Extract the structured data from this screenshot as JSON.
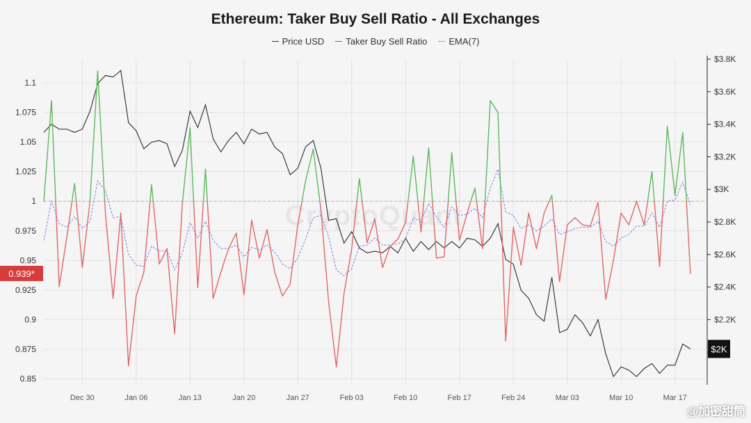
{
  "title": "Ethereum: Taker Buy Sell Ratio - All Exchanges",
  "legend": [
    {
      "label": "Price USD",
      "color": "#333333",
      "style": "solid"
    },
    {
      "label": "Taker Buy Sell Ratio",
      "color": "#5b5fd6",
      "style": "solid"
    },
    {
      "label": "EMA(7)",
      "color": "#8a8ae6",
      "style": "dashed"
    }
  ],
  "current_ratio_label": "0.939*",
  "current_price_label": "$2K",
  "watermark": "CryptoQuant",
  "corner_watermark": "@加密甜筒",
  "colors": {
    "above": "#5cb85c",
    "below": "#e06666",
    "price": "#2b2b2b",
    "ema": "#7b7be8",
    "ratio_badge": "#d63c3c",
    "price_badge": "#111111"
  },
  "chart_data": {
    "type": "line",
    "title": "Ethereum: Taker Buy Sell Ratio - All Exchanges",
    "x_start": "2024-12-25",
    "x_ticks": [
      {
        "label": "Dec 30",
        "day": 5
      },
      {
        "label": "Jan 06",
        "day": 12
      },
      {
        "label": "Jan 13",
        "day": 19
      },
      {
        "label": "Jan 20",
        "day": 26
      },
      {
        "label": "Jan 27",
        "day": 33
      },
      {
        "label": "Feb 03",
        "day": 40
      },
      {
        "label": "Feb 10",
        "day": 47
      },
      {
        "label": "Feb 17",
        "day": 54
      },
      {
        "label": "Feb 24",
        "day": 61
      },
      {
        "label": "Mar 03",
        "day": 68
      },
      {
        "label": "Mar 10",
        "day": 75
      },
      {
        "label": "Mar 17",
        "day": 82
      }
    ],
    "x_range": [
      0,
      86
    ],
    "left_axis": {
      "label": "Taker Buy Sell Ratio",
      "ylim": [
        0.845,
        1.12
      ],
      "ticks": [
        0.85,
        0.875,
        0.9,
        0.925,
        0.95,
        0.975,
        1,
        1.025,
        1.05,
        1.075,
        1.1
      ],
      "tick_labels": [
        "0.85",
        "0.875",
        "0.9",
        "0.925",
        "0.95",
        "0.975",
        "1",
        "1.025",
        "1.05",
        "1.075",
        "1.1"
      ],
      "reference": 1
    },
    "right_axis": {
      "label": "Price USD",
      "ylim": [
        1800,
        3800
      ],
      "ticks": [
        2000,
        2200,
        2400,
        2600,
        2800,
        3000,
        3200,
        3400,
        3600,
        3800
      ],
      "tick_labels": [
        "$2K",
        "$2.2K",
        "$2.4K",
        "$2.6K",
        "$2.8K",
        "$3K",
        "$3.2K",
        "$3.4K",
        "$3.6K",
        "$3.8K"
      ]
    },
    "series": [
      {
        "name": "Taker Buy Sell Ratio",
        "axis": "left",
        "values": [
          1.0,
          1.085,
          0.928,
          0.97,
          1.015,
          0.944,
          1.0,
          1.11,
          0.99,
          0.918,
          0.99,
          0.861,
          0.92,
          0.94,
          1.014,
          0.947,
          0.96,
          0.888,
          0.998,
          1.062,
          0.927,
          1.027,
          0.918,
          0.94,
          0.96,
          0.973,
          0.921,
          0.984,
          0.952,
          0.976,
          0.94,
          0.92,
          0.93,
          0.98,
          1.017,
          1.044,
          0.993,
          0.915,
          0.86,
          0.922,
          0.96,
          1.019,
          0.965,
          0.985,
          0.944,
          0.962,
          0.968,
          0.982,
          1.038,
          0.974,
          1.045,
          0.952,
          0.953,
          1.041,
          0.967,
          0.99,
          1.011,
          0.96,
          1.085,
          1.075,
          0.882,
          0.978,
          0.946,
          0.99,
          0.96,
          0.99,
          1.005,
          0.932,
          0.98,
          0.986,
          0.98,
          0.979,
          0.999,
          0.917,
          0.95,
          0.99,
          0.98,
          1.0,
          0.98,
          1.025,
          0.945,
          1.063,
          1.005,
          1.058,
          0.939
        ]
      },
      {
        "name": "EMA(7)",
        "axis": "left",
        "values": [
          0.967,
          1.0,
          0.981,
          0.978,
          0.987,
          0.977,
          0.983,
          1.017,
          1.009,
          0.986,
          0.987,
          0.955,
          0.946,
          0.945,
          0.962,
          0.958,
          0.958,
          0.942,
          0.956,
          0.982,
          0.969,
          0.983,
          0.967,
          0.96,
          0.96,
          0.963,
          0.953,
          0.961,
          0.959,
          0.963,
          0.957,
          0.947,
          0.943,
          0.952,
          0.968,
          0.986,
          0.988,
          0.97,
          0.942,
          0.937,
          0.943,
          0.962,
          0.963,
          0.969,
          0.963,
          0.963,
          0.964,
          0.968,
          0.986,
          0.983,
          0.998,
          0.987,
          0.978,
          0.995,
          0.988,
          0.989,
          0.994,
          0.986,
          1.011,
          1.027,
          0.991,
          0.988,
          0.977,
          0.98,
          0.975,
          0.979,
          0.985,
          0.972,
          0.974,
          0.977,
          0.978,
          0.978,
          0.983,
          0.966,
          0.962,
          0.969,
          0.972,
          0.979,
          0.979,
          0.99,
          0.978,
          1.0,
          1.001,
          1.016,
          0.997
        ]
      },
      {
        "name": "Price USD",
        "axis": "right",
        "values": [
          3350,
          3400,
          3370,
          3370,
          3350,
          3370,
          3480,
          3650,
          3700,
          3690,
          3730,
          3410,
          3360,
          3250,
          3290,
          3300,
          3280,
          3140,
          3240,
          3480,
          3380,
          3520,
          3310,
          3230,
          3300,
          3350,
          3280,
          3370,
          3340,
          3350,
          3260,
          3220,
          3090,
          3130,
          3260,
          3300,
          3130,
          2810,
          2820,
          2670,
          2740,
          2640,
          2610,
          2620,
          2610,
          2650,
          2610,
          2700,
          2620,
          2680,
          2630,
          2680,
          2640,
          2680,
          2640,
          2700,
          2690,
          2650,
          2700,
          2790,
          2570,
          2540,
          2380,
          2330,
          2230,
          2190,
          2460,
          2120,
          2140,
          2230,
          2180,
          2100,
          2200,
          1990,
          1850,
          1910,
          1890,
          1850,
          1900,
          1930,
          1870,
          1920,
          1920,
          2050,
          2020
        ]
      }
    ]
  }
}
